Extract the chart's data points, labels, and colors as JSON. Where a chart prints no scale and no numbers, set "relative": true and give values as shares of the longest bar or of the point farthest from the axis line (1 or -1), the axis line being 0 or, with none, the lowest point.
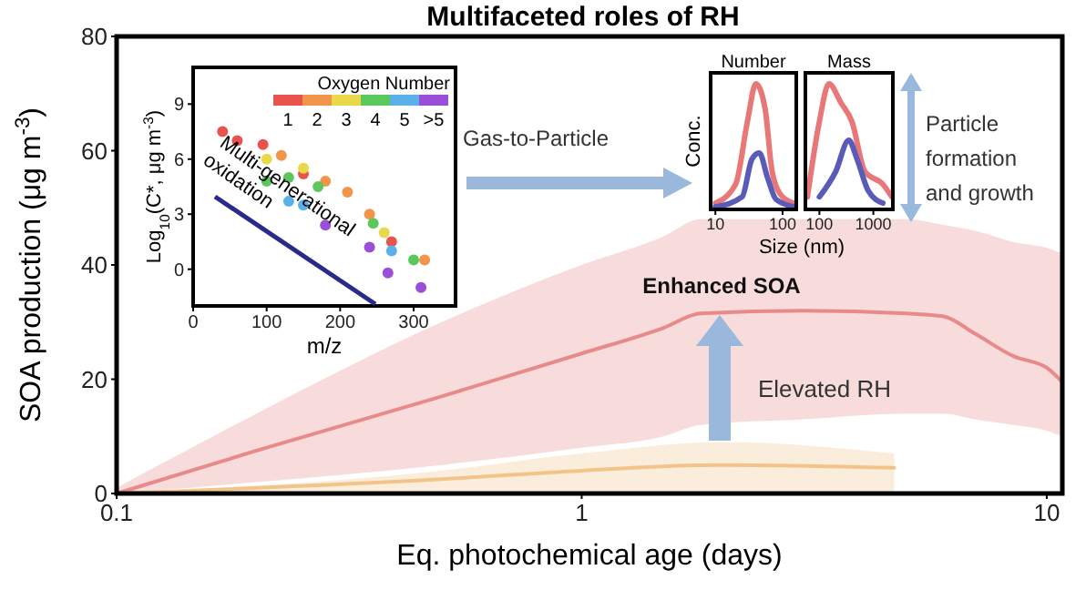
{
  "chart_data": [
    {
      "type": "line",
      "title": "Multifaceted roles of RH",
      "xlabel": "Eq. photochemical age (days)",
      "ylabel": "SOA production (μg m$^{-3}$)",
      "log": "x",
      "xlim": [
        0.1,
        10.8
      ],
      "ylim": [
        0,
        80
      ],
      "xticks": [
        0.1,
        1,
        10
      ],
      "yticks": [
        0,
        20,
        40,
        60,
        80
      ],
      "grid": false,
      "legend": false,
      "marker": "none",
      "series": [
        {
          "color": "#e88a8a",
          "x": [
            0.1,
            0.2,
            0.5,
            1,
            1.5,
            1.8,
            3,
            5,
            6,
            7,
            8.5,
            10,
            10.8
          ],
          "values": [
            0,
            7.5,
            17,
            24.5,
            29,
            31.5,
            32,
            31.5,
            31,
            28,
            24,
            22,
            19.5
          ],
          "lower": [
            0,
            2,
            5,
            8,
            10,
            12,
            13,
            14,
            14,
            13,
            12,
            11,
            10
          ],
          "upper": [
            1,
            14,
            30,
            40,
            45,
            48,
            48,
            48,
            47,
            46,
            44,
            43,
            42
          ]
        },
        {
          "color": "#f2c48a",
          "x": [
            0.1,
            0.5,
            1,
            2,
            4.7
          ],
          "values": [
            0,
            2.5,
            4,
            5,
            4.5
          ],
          "lower": [
            0,
            0,
            0,
            0,
            0
          ],
          "upper": [
            0,
            4,
            7,
            9,
            7
          ]
        }
      ],
      "annotations": [
        "Gas-to-Particle",
        "Particle formation and growth",
        "Enhanced SOA",
        "Elevated RH"
      ]
    },
    {
      "type": "scatter",
      "xlabel": "m/z",
      "ylabel": "Log$_{10}$(C*, μg m$^{-3}$)",
      "legend_title": "Oxygen Number",
      "legend": "top right",
      "xlim": [
        0,
        357
      ],
      "ylim": [
        -2,
        11
      ],
      "xticks": [
        0,
        100,
        200,
        300
      ],
      "yticks": [
        0,
        3,
        6,
        9
      ],
      "marker": "circle",
      "series": [
        {
          "name": "1",
          "color": "#e8534e",
          "x": [
            40,
            60,
            95,
            150,
            270
          ],
          "values": [
            7.5,
            7,
            6.8,
            5.2,
            1.5
          ]
        },
        {
          "name": "2",
          "color": "#f0954a",
          "x": [
            120,
            180,
            210,
            240,
            315
          ],
          "values": [
            6.2,
            4.8,
            4.2,
            3,
            0.5
          ]
        },
        {
          "name": "3",
          "color": "#e8d84a",
          "x": [
            100,
            150,
            260
          ],
          "values": [
            6,
            5.5,
            2
          ]
        },
        {
          "name": "4",
          "color": "#5cc85c",
          "x": [
            100,
            130,
            170,
            245,
            300
          ],
          "values": [
            4.8,
            5,
            4.5,
            2.5,
            0.5
          ]
        },
        {
          "name": "5",
          "color": "#5ab0e8",
          "x": [
            130,
            150,
            270
          ],
          "values": [
            3.7,
            3.5,
            1
          ]
        },
        {
          "name": ">5",
          "color": "#9a4fd8",
          "x": [
            180,
            240,
            265,
            310
          ],
          "values": [
            2.4,
            1.2,
            -0.2,
            -1
          ]
        }
      ],
      "annotations": [
        "Multi-generational oxidation"
      ]
    },
    {
      "type": "line",
      "title": "Number",
      "ylabel": "Conc.",
      "log": "x",
      "relative": true,
      "xlim": [
        8.5,
        160
      ],
      "xticks": [
        10,
        100
      ],
      "marker": "none",
      "series": [
        {
          "color": "#e87878",
          "x": [
            10,
            20,
            30,
            40,
            55,
            70,
            100,
            150
          ],
          "values": [
            0.05,
            0.2,
            0.7,
            1,
            0.8,
            0.3,
            0.1,
            0.05
          ]
        },
        {
          "color": "#5a5ab8",
          "x": [
            10,
            25,
            35,
            45,
            60,
            80,
            150
          ],
          "values": [
            0.02,
            0.1,
            0.4,
            0.45,
            0.25,
            0.08,
            0.02
          ]
        }
      ]
    },
    {
      "type": "line",
      "title": "Mass",
      "xlabel": "Size (nm)",
      "log": "x",
      "relative": true,
      "xlim": [
        55,
        2300
      ],
      "xticks": [
        100,
        1000
      ],
      "marker": "none",
      "series": [
        {
          "color": "#e87878",
          "x": [
            60,
            100,
            150,
            250,
            400,
            700,
            1500,
            2200
          ],
          "values": [
            0.1,
            0.7,
            1,
            0.85,
            0.7,
            0.3,
            0.2,
            0.1
          ]
        },
        {
          "color": "#5a5ab8",
          "x": [
            100,
            200,
            350,
            500,
            800,
            1500
          ],
          "values": [
            0.1,
            0.3,
            0.55,
            0.4,
            0.15,
            0.05
          ]
        }
      ]
    }
  ]
}
